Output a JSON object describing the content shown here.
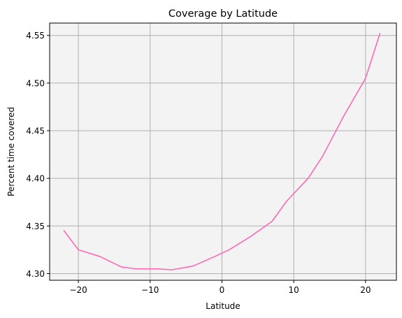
{
  "chart_data": {
    "type": "line",
    "title": "Coverage by Latitude",
    "xlabel": "Latitude",
    "ylabel": "Percent time covered",
    "xlim": [
      -24,
      24.3
    ],
    "ylim": [
      4.293,
      4.563
    ],
    "xticks": [
      -20,
      -10,
      0,
      10,
      20
    ],
    "xtick_labels": [
      "−20",
      "−10",
      "0",
      "10",
      "20"
    ],
    "yticks": [
      4.3,
      4.35,
      4.4,
      4.45,
      4.5,
      4.55
    ],
    "ytick_labels": [
      "4.30",
      "4.35",
      "4.40",
      "4.45",
      "4.50",
      "4.55"
    ],
    "grid": true,
    "background_color": "#f3f3f3",
    "grid_color": "#b0b0b0",
    "series": [
      {
        "color": "#ff69b4",
        "x": [
          -22,
          -20,
          -17,
          -14,
          -12,
          -9,
          -7,
          -4,
          -1,
          1,
          4,
          7,
          9,
          12,
          14,
          17,
          20,
          22
        ],
        "y": [
          4.345,
          4.325,
          4.318,
          4.307,
          4.305,
          4.305,
          4.304,
          4.308,
          4.318,
          4.325,
          4.339,
          4.355,
          4.376,
          4.4,
          4.423,
          4.466,
          4.505,
          4.552
        ]
      }
    ]
  }
}
